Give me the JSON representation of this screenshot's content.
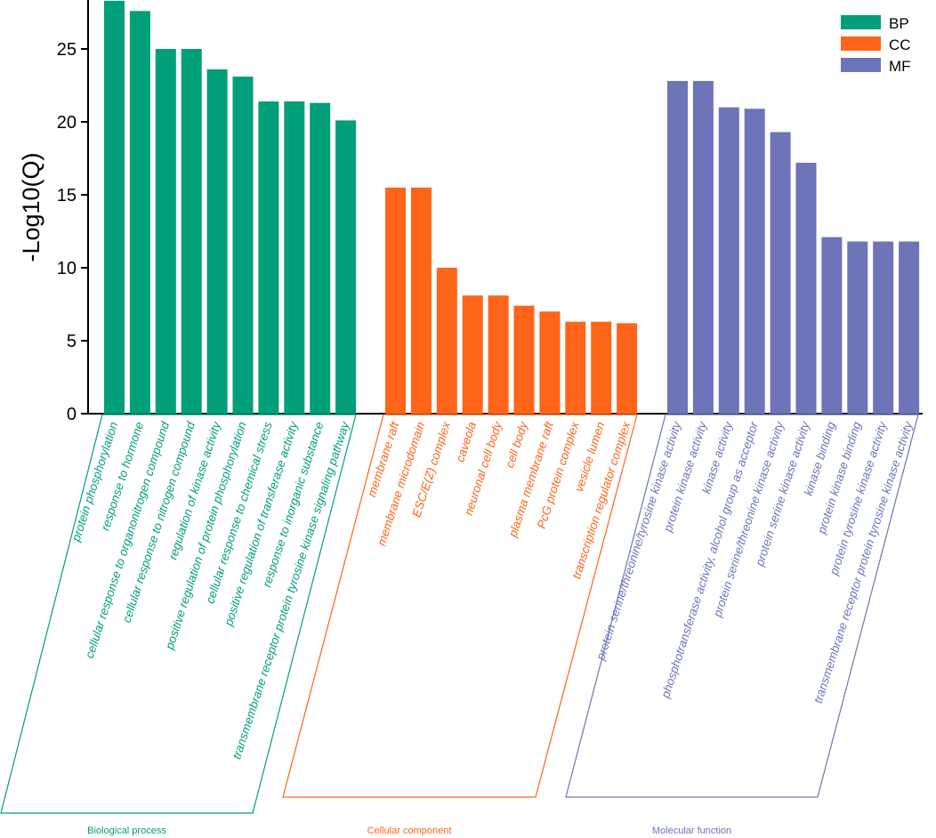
{
  "chart_data": {
    "type": "bar",
    "ylabel": "-Log10(Q)",
    "xlabel": "",
    "ylim": [
      0,
      28
    ],
    "yticks": [
      0,
      5,
      10,
      15,
      20,
      25
    ],
    "grid": false,
    "legend_position": "top-right",
    "series": [
      {
        "key": "BP",
        "name": "BP",
        "group_label": "Biological process",
        "color": "#009E79",
        "categories": [
          "protein phosphorylation",
          "response to hormone",
          "cellular response to organonitrogen compound",
          "cellular response to nitrogen compound",
          "regulation of kinase activity",
          "positive regulation of protein phosphorylation",
          "cellular response to chemical stress",
          "positive regulation of transferase activity",
          "response to inorganic substance",
          "transmembrane receptor protein tyrosine kinase signaling pathway"
        ],
        "values": [
          28.3,
          27.6,
          25.0,
          25.0,
          23.6,
          23.1,
          21.4,
          21.4,
          21.3,
          20.1
        ]
      },
      {
        "key": "CC",
        "name": "CC",
        "group_label": "Cellular component",
        "color": "#FF6418",
        "categories": [
          "membrane raft",
          "membrane microdomain",
          "ESC/E(Z) complex",
          "caveola",
          "neuronal cell body",
          "cell body",
          "plasma membrane raft",
          "PcG protein complex",
          "vesicle lumen",
          "transcription regulator complex"
        ],
        "values": [
          15.5,
          15.5,
          10.0,
          8.1,
          8.1,
          7.4,
          7.0,
          6.3,
          6.3,
          6.2
        ]
      },
      {
        "key": "MF",
        "name": "MF",
        "group_label": "Molecular function",
        "color": "#6D74B8",
        "categories": [
          "protein serine/threonine/tyrosine kinase activity",
          "protein kinase activity",
          "kinase activity",
          "phosphotransferase activity, alcohol group as acceptor",
          "protein serine/threonine kinase activity",
          "protein serine kinase activity",
          "kinase binding",
          "protein kinase binding",
          "protein tyrosine kinase activity",
          "transmembrane receptor protein tyrosine kinase activity"
        ],
        "values": [
          22.8,
          22.8,
          21.0,
          20.9,
          19.3,
          17.2,
          12.1,
          11.8,
          11.8,
          11.8
        ]
      }
    ]
  }
}
